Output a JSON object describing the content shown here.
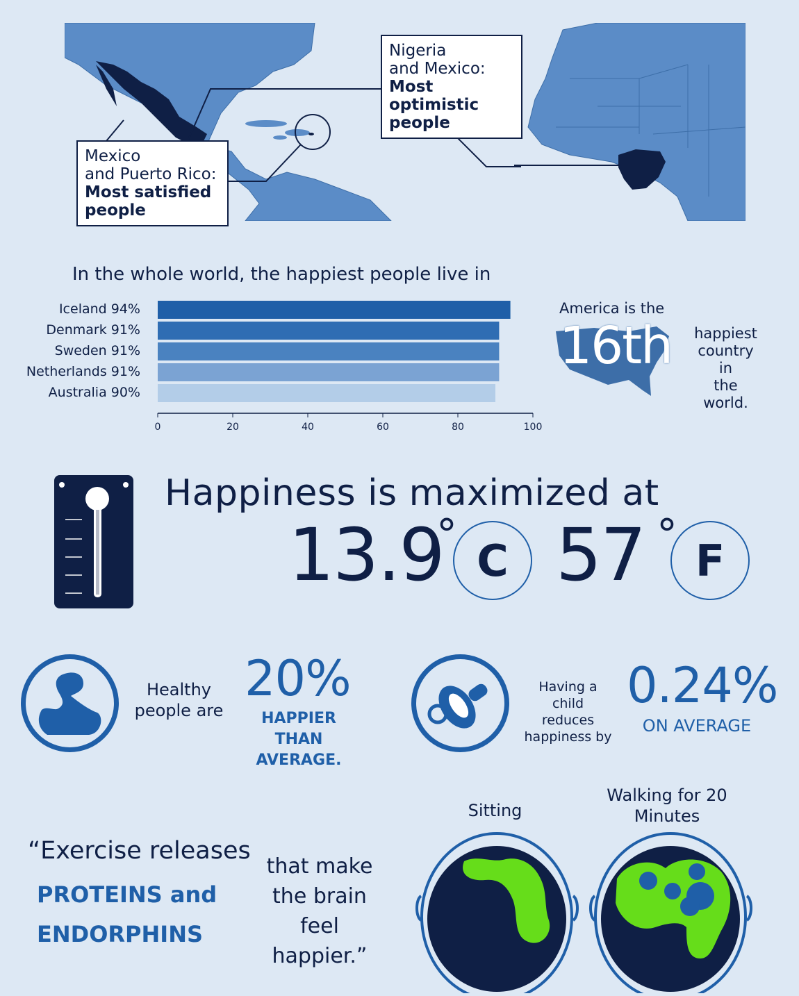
{
  "maps": {
    "left_box": {
      "line1": "Mexico",
      "line2": "and Puerto Rico:",
      "line3": "Most satisfied",
      "line4": "people"
    },
    "right_box": {
      "line1": "Nigeria",
      "line2": "and Mexico:",
      "line3": "Most optimistic",
      "line4": "people"
    }
  },
  "chart_data": {
    "type": "bar",
    "orientation": "horizontal",
    "title": "In the whole world, the happiest people live in",
    "categories": [
      "Iceland 94%",
      "Denmark 91%",
      "Sweden 91%",
      "Netherlands 91%",
      "Australia 90%"
    ],
    "values": [
      94,
      91,
      91,
      91,
      90
    ],
    "bar_colors": [
      "#1f5fa8",
      "#2f6db3",
      "#4a82c0",
      "#7ba3d3",
      "#b3cde8"
    ],
    "xlim": [
      0,
      100
    ],
    "xticks": [
      0,
      20,
      40,
      60,
      80,
      100
    ],
    "grid": false
  },
  "america": {
    "line1": "America is the",
    "rank": "16th",
    "line2": "happiest",
    "line3": "country in",
    "line4": "the world."
  },
  "temperature": {
    "headline": "Happiness is maximized at",
    "celsius": "13.9",
    "celsius_unit": "C",
    "fahrenheit": "57",
    "fahrenheit_unit": "F",
    "degree": "°"
  },
  "stats": {
    "health": {
      "line1": "Healthy",
      "line2": "people are",
      "value": "20%",
      "caption1": "HAPPIER THAN",
      "caption2": "AVERAGE."
    },
    "child": {
      "line1": "Having a child",
      "line2": "reduces",
      "line3": "happiness by",
      "value": "0.24%",
      "caption": "ON AVERAGE"
    }
  },
  "quote": {
    "line1": "“Exercise releases",
    "line2": "PROTEINS and",
    "line3": "ENDORPHINS",
    "line4": "that make",
    "line5": "the brain",
    "line6": "feel happier.”"
  },
  "brains": {
    "left_label": "Sitting",
    "right_label1": "Walking for 20",
    "right_label2": "Minutes"
  },
  "colors": {
    "background": "#dde8f4",
    "navy": "#0f1f45",
    "accent_blue": "#1f5fa8",
    "map_blue": "#5b8cc7",
    "brain_green": "#66dd1a"
  }
}
